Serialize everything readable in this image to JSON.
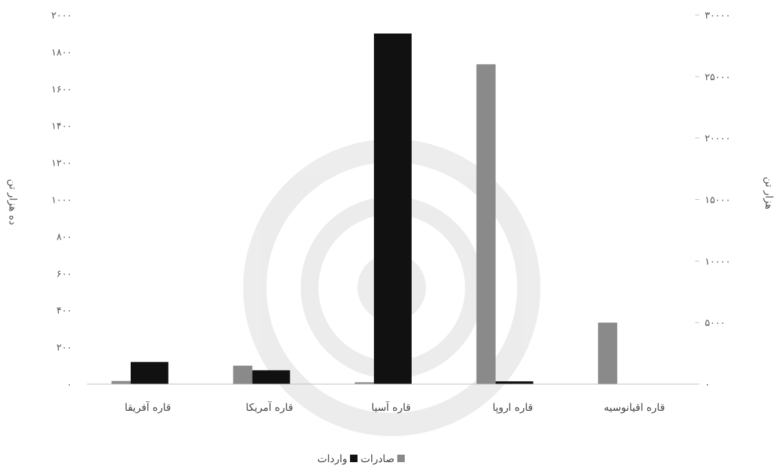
{
  "chart_data": {
    "type": "bar",
    "categories": [
      "قاره آفریقا",
      "قاره آمریکا",
      "قاره آسیا",
      "قاره اروپا",
      "قاره اقیانوسیه"
    ],
    "series": [
      {
        "name": "صادرات",
        "axis": "right",
        "color": "#8a8a8a",
        "values": [
          250,
          1500,
          150,
          26000,
          5000
        ]
      },
      {
        "name": "واردات",
        "axis": "left",
        "color": "#111111",
        "values": [
          120,
          75,
          1900,
          15,
          0
        ]
      }
    ],
    "y_left": {
      "label": "ده هزار تن",
      "ylim": [
        0,
        2000
      ],
      "ticks": [
        "۰",
        "۲۰۰",
        "۴۰۰",
        "۶۰۰",
        "۸۰۰",
        "۱۰۰۰",
        "۱۲۰۰",
        "۱۴۰۰",
        "۱۶۰۰",
        "۱۸۰۰",
        "۲۰۰۰"
      ]
    },
    "y_right": {
      "label": "هزار تن",
      "ylim": [
        0,
        30000
      ],
      "ticks": [
        "۰",
        "۵۰۰۰",
        "۱۰۰۰۰",
        "۱۵۰۰۰",
        "۲۰۰۰۰",
        "۲۵۰۰۰",
        "۳۰۰۰۰"
      ]
    },
    "grid": false,
    "legend_position": "bottom",
    "legend": [
      "واردات",
      "صادرات"
    ]
  }
}
